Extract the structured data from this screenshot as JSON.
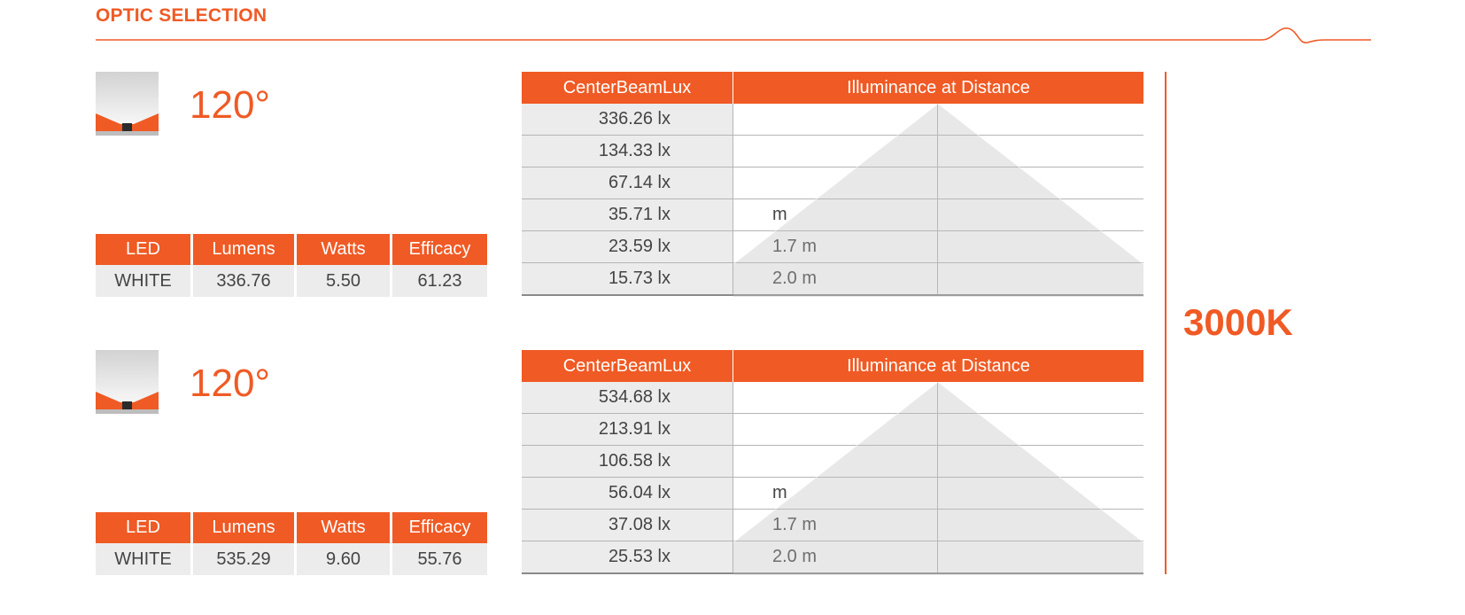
{
  "header": {
    "title": "OPTIC SELECTION"
  },
  "cct": "3000K",
  "colors": {
    "accent": "#f05a24",
    "cell_bg": "#ececec"
  },
  "optics": [
    {
      "icon": "optic-beam-icon",
      "beam_angle": "120°",
      "specs": {
        "headers": [
          "LED",
          "Lumens",
          "Watts",
          "Efficacy"
        ],
        "row": [
          "WHITE",
          "336.76",
          "5.50",
          "61.23"
        ]
      },
      "illuminance": {
        "headers": [
          "CenterBeamLux",
          "Illuminance at Distance"
        ],
        "rows": [
          {
            "lux": "336.26 lx",
            "distance": ""
          },
          {
            "lux": "134.33 lx",
            "distance": ""
          },
          {
            "lux": "67.14 lx",
            "distance": ""
          },
          {
            "lux": "35.71 lx",
            "distance": "m"
          },
          {
            "lux": "23.59 lx",
            "distance": "1.7 m"
          },
          {
            "lux": "15.73 lx",
            "distance": "2.0 m"
          }
        ]
      }
    },
    {
      "icon": "optic-beam-icon",
      "beam_angle": "120°",
      "specs": {
        "headers": [
          "LED",
          "Lumens",
          "Watts",
          "Efficacy"
        ],
        "row": [
          "WHITE",
          "535.29",
          "9.60",
          "55.76"
        ]
      },
      "illuminance": {
        "headers": [
          "CenterBeamLux",
          "Illuminance at Distance"
        ],
        "rows": [
          {
            "lux": "534.68 lx",
            "distance": ""
          },
          {
            "lux": "213.91 lx",
            "distance": ""
          },
          {
            "lux": "106.58 lx",
            "distance": ""
          },
          {
            "lux": "56.04 lx",
            "distance": "m"
          },
          {
            "lux": "37.08 lx",
            "distance": "1.7 m"
          },
          {
            "lux": "25.53 lx",
            "distance": "2.0 m"
          }
        ]
      }
    }
  ]
}
